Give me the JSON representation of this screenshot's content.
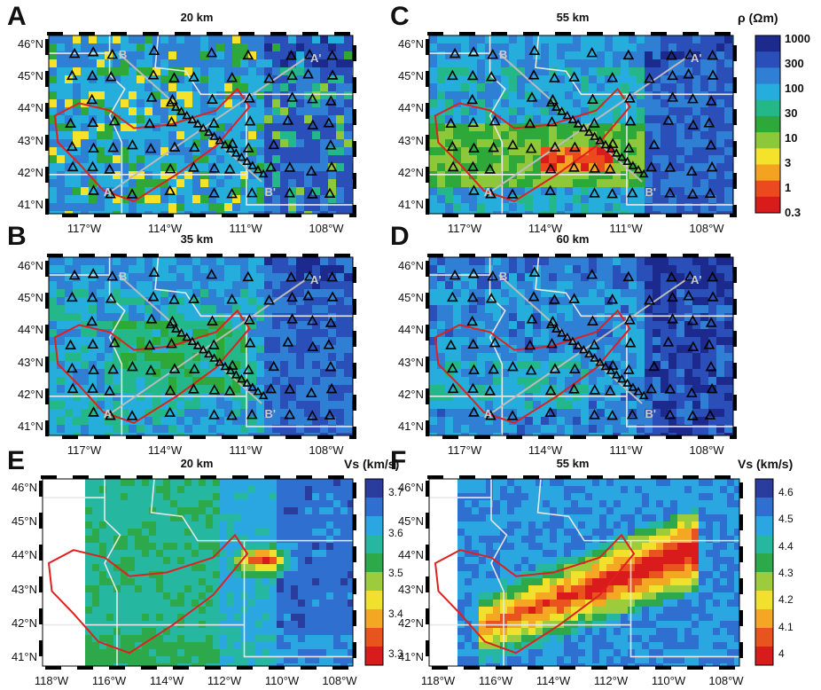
{
  "chart_data": [
    {
      "type": "heatmap",
      "panel": "A",
      "title": "20 km",
      "variable": "resistivity",
      "projection": "map"
    },
    {
      "type": "heatmap",
      "panel": "B",
      "title": "35 km",
      "variable": "resistivity"
    },
    {
      "type": "heatmap",
      "panel": "C",
      "title": "55 km",
      "variable": "resistivity"
    },
    {
      "type": "heatmap",
      "panel": "D",
      "title": "60 km",
      "variable": "resistivity"
    },
    {
      "type": "heatmap",
      "panel": "E",
      "title": "20 km",
      "variable": "Vs"
    },
    {
      "type": "heatmap",
      "panel": "F",
      "title": "55 km",
      "variable": "Vs"
    }
  ],
  "panels": {
    "A": {
      "letter": "A",
      "title": "20 km"
    },
    "B": {
      "letter": "B",
      "title": "35 km"
    },
    "C": {
      "letter": "C",
      "title": "55 km"
    },
    "D": {
      "letter": "D",
      "title": "60 km"
    },
    "E": {
      "letter": "E",
      "title": "20 km"
    },
    "F": {
      "letter": "F",
      "title": "55 km"
    }
  },
  "profile_labels": {
    "b": "B",
    "a_end": "A'",
    "a": "A",
    "b_end": "B'"
  },
  "axes": {
    "lat_top": [
      "46°N",
      "45°N",
      "44°N",
      "43°N",
      "42°N",
      "41°N"
    ],
    "lon_top": [
      "117°W",
      "114°W",
      "111°W",
      "108°W"
    ],
    "lon_bottom": [
      "118°W",
      "116°W",
      "114°W",
      "112°W",
      "110°W",
      "108°W"
    ]
  },
  "colorbars": {
    "rho": {
      "title": "ρ (Ωm)",
      "ticks": [
        "1000",
        "300",
        "100",
        "30",
        "10",
        "3",
        "1",
        "0.3"
      ],
      "colors": [
        "#1b2a8c",
        "#2a4fb8",
        "#2f7fd4",
        "#25aedb",
        "#23b78a",
        "#2fa83a",
        "#8cc83a",
        "#f5e22a",
        "#f4a321",
        "#ec4a1e",
        "#d91b1b"
      ]
    },
    "vs20": {
      "title": "Vs (km/s)",
      "ticks": [
        "3.7",
        "3.6",
        "3.5",
        "3.4",
        "3.3"
      ]
    },
    "vs55": {
      "title": "Vs (km/s)",
      "ticks": [
        "4.6",
        "4.5",
        "4.4",
        "4.3",
        "4.2",
        "4.1",
        "4"
      ]
    }
  }
}
